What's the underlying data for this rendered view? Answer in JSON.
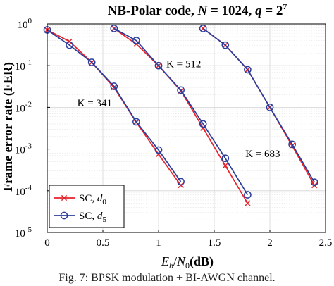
{
  "chart_data": {
    "type": "line",
    "title": "NB-Polar code, N = 1024, q = 2^7",
    "title_parts": {
      "prefix": "NB-Polar code, ",
      "n_var": "N",
      "n_eq": " = 1024, ",
      "q_var": "q",
      "q_eq": " = 2",
      "q_exp": "7"
    },
    "xlabel": "E_b/N_0(dB)",
    "xlabel_parts": {
      "e": "E",
      "b": "b",
      "slash": "/",
      "n": "N",
      "zero": "0",
      "unit": "(dB)"
    },
    "ylabel": "Frame error rate (FER)",
    "xlim": [
      0,
      2.5
    ],
    "ylim": [
      1e-05,
      1
    ],
    "yscale": "log",
    "grid": true,
    "x_ticks": [
      {
        "v": 0,
        "label": "0"
      },
      {
        "v": 0.5,
        "label": "0.5"
      },
      {
        "v": 1,
        "label": "1"
      },
      {
        "v": 1.5,
        "label": "1.5"
      },
      {
        "v": 2,
        "label": "2"
      },
      {
        "v": 2.5,
        "label": "2.5"
      }
    ],
    "y_ticks": [
      {
        "exp": 0,
        "base": "10",
        "sup": "0"
      },
      {
        "exp": -1,
        "base": "10",
        "sup": "-1"
      },
      {
        "exp": -2,
        "base": "10",
        "sup": "-2"
      },
      {
        "exp": -3,
        "base": "10",
        "sup": "-3"
      },
      {
        "exp": -4,
        "base": "10",
        "sup": "-4"
      },
      {
        "exp": -5,
        "base": "10",
        "sup": "-5"
      }
    ],
    "legend": {
      "position": "bottom-left",
      "entries": [
        {
          "series": "sc_d0",
          "text": "SC, ",
          "var": "d",
          "sub": "0"
        },
        {
          "series": "sc_d5",
          "text": "SC, ",
          "var": "d",
          "sub": "5"
        }
      ]
    },
    "annotations": [
      {
        "text": "K = 341",
        "x": 0.27,
        "y": 0.0105
      },
      {
        "text": "K = 512",
        "x": 1.07,
        "y": 0.092
      },
      {
        "text": "K = 683",
        "x": 1.78,
        "y": 0.00064
      }
    ],
    "colors": {
      "sc_d0": "#e8222a",
      "sc_d5": "#2b3d9c"
    },
    "series": [
      {
        "name": "SC, d0",
        "group": "K = 341",
        "style": "sc_d0",
        "marker": "x",
        "x": [
          0,
          0.2,
          0.4,
          0.6,
          0.8,
          1.0,
          1.2
        ],
        "y": [
          0.72,
          0.38,
          0.12,
          0.03,
          0.0044,
          0.00075,
          0.000135
        ]
      },
      {
        "name": "SC, d5",
        "group": "K = 341",
        "style": "sc_d5",
        "marker": "o",
        "x": [
          0,
          0.2,
          0.4,
          0.6,
          0.8,
          1.0,
          1.2
        ],
        "y": [
          0.72,
          0.31,
          0.12,
          0.032,
          0.0045,
          0.00095,
          0.000165
        ]
      },
      {
        "name": "SC, d0",
        "group": "K = 512",
        "style": "sc_d0",
        "marker": "x",
        "x": [
          0.6,
          0.8,
          1.0,
          1.2,
          1.4,
          1.6,
          1.8
        ],
        "y": [
          0.78,
          0.33,
          0.1,
          0.025,
          0.0032,
          0.0004,
          5e-05
        ]
      },
      {
        "name": "SC, d5",
        "group": "K = 512",
        "style": "sc_d5",
        "marker": "o",
        "x": [
          0.6,
          0.8,
          1.0,
          1.2,
          1.4,
          1.6,
          1.8
        ],
        "y": [
          0.78,
          0.4,
          0.1,
          0.026,
          0.004,
          0.0006,
          8e-05
        ]
      },
      {
        "name": "SC, d0",
        "group": "K = 683",
        "style": "sc_d0",
        "marker": "x",
        "x": [
          1.4,
          1.6,
          1.8,
          2.0,
          2.2,
          2.4
        ],
        "y": [
          0.78,
          0.31,
          0.08,
          0.01,
          0.0012,
          0.000135
        ]
      },
      {
        "name": "SC, d5",
        "group": "K = 683",
        "style": "sc_d5",
        "marker": "o",
        "x": [
          1.4,
          1.6,
          1.8,
          2.0,
          2.2,
          2.4
        ],
        "y": [
          0.78,
          0.31,
          0.08,
          0.01,
          0.0013,
          0.00016
        ]
      }
    ]
  },
  "caption": "Fig. 7: BPSK modulation + BI-AWGN channel."
}
